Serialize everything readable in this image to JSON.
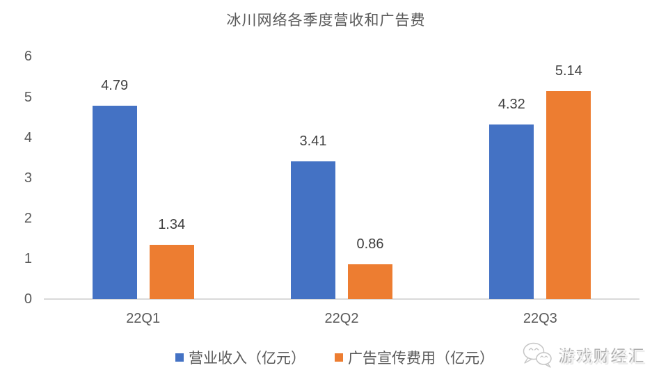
{
  "title": "冰川网络各季度营收和广告费",
  "chart_data": {
    "type": "bar",
    "title": "冰川网络各季度营收和广告费",
    "categories": [
      "22Q1",
      "22Q2",
      "22Q3"
    ],
    "series": [
      {
        "name": "营业收入（亿元）",
        "color": "#4472C4",
        "values": [
          4.79,
          3.41,
          4.32
        ]
      },
      {
        "name": "广告宣传费用（亿元）",
        "color": "#ED7D31",
        "values": [
          1.34,
          0.86,
          5.14
        ]
      }
    ],
    "xlabel": "",
    "ylabel": "",
    "ylim": [
      0,
      6
    ],
    "yticks": [
      0,
      1,
      2,
      3,
      4,
      5,
      6
    ],
    "grid": false,
    "legend_position": "bottom",
    "data_labels_visible": true
  },
  "colors": {
    "axis_line": "#D9D9D9",
    "tick_label": "#595959",
    "data_label": "#404040",
    "title": "#595959"
  },
  "watermark": {
    "icon": "wechat-icon",
    "text": "游戏财经汇"
  }
}
